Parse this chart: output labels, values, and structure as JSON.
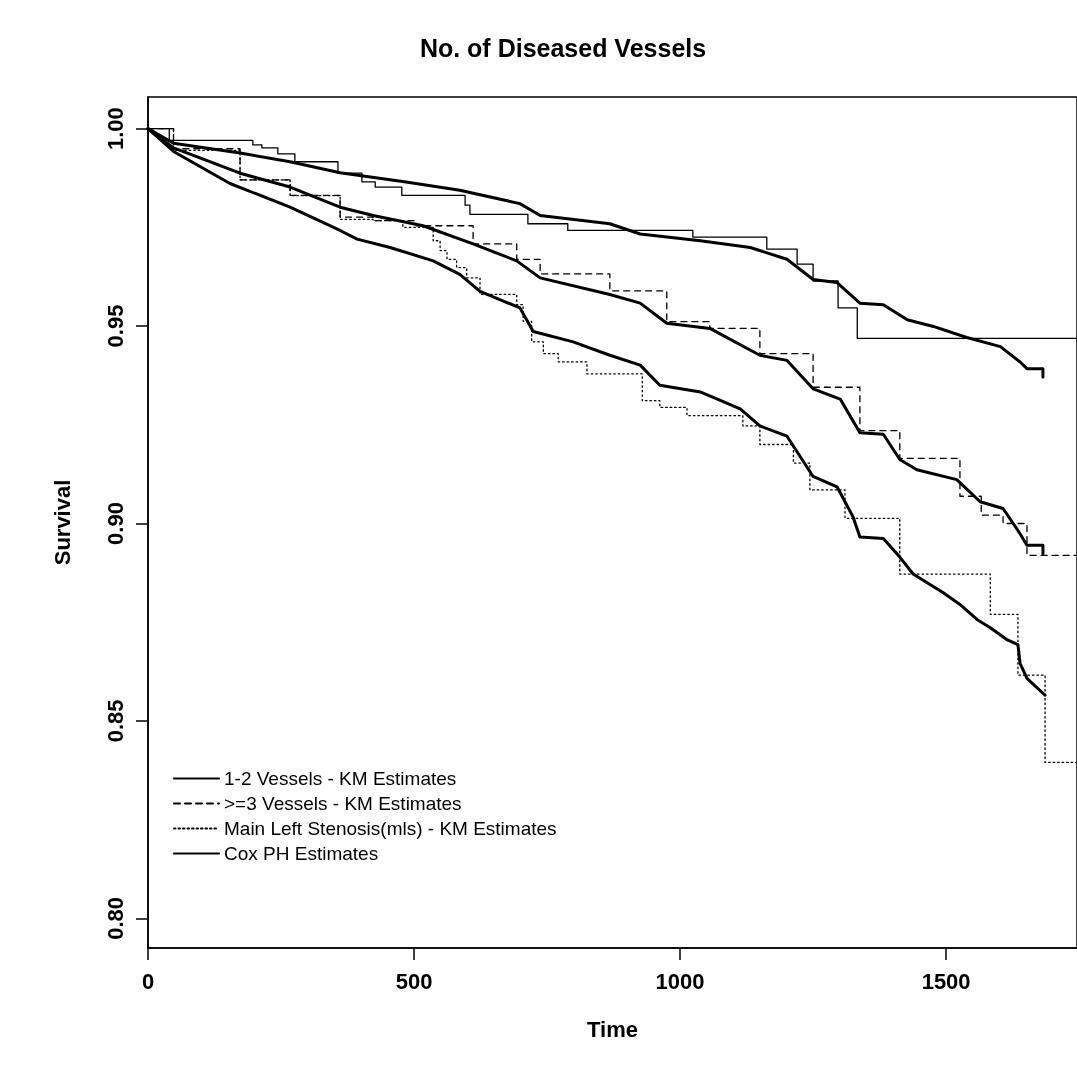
{
  "chart_data": {
    "type": "step",
    "title": "No. of Diseased Vessels",
    "xlabel": "Time",
    "ylabel": "Survival",
    "xlim": [
      0,
      1746
    ],
    "xticks": [
      0,
      500,
      1000,
      1500
    ],
    "ylim": [
      0.7925,
      1.008
    ],
    "yticks": [
      {
        "value": 0.8,
        "label": "0.80"
      },
      {
        "value": 0.85,
        "label": "0.85"
      },
      {
        "value": 0.9,
        "label": "0.90"
      },
      {
        "value": 0.95,
        "label": "0.95"
      },
      {
        "value": 1,
        "label": "1.00"
      }
    ],
    "grid": false,
    "legend": "bottom left",
    "marker": "none",
    "series": [
      {
        "name": "1-2 Vessels - KM Estimates",
        "line_style": "solid",
        "color": "#000000",
        "x": [
          0,
          40,
          197,
          214,
          244,
          276,
          357,
          402,
          427,
          477,
          596,
          605,
          714,
          789,
          1024,
          1163,
          1220,
          1250,
          1297,
          1333,
          1746
        ],
        "values": [
          1.0,
          0.997,
          0.9959,
          0.9951,
          0.9936,
          0.9916,
          0.9887,
          0.9865,
          0.9852,
          0.9831,
          0.9806,
          0.9783,
          0.9759,
          0.9742,
          0.9725,
          0.9695,
          0.9657,
          0.9614,
          0.9546,
          0.9469,
          0.9469
        ]
      },
      {
        "name": ">=3 Vessels - KM Estimates",
        "line_style": "dashed",
        "color": "#000000",
        "x": [
          0,
          48,
          173,
          267,
          361,
          423,
          504,
          611,
          693,
          737,
          868,
          975,
          1056,
          1150,
          1250,
          1338,
          1413,
          1526,
          1566,
          1607,
          1652,
          1746
        ],
        "values": [
          1.0,
          0.9949,
          0.987,
          0.9831,
          0.9776,
          0.9767,
          0.9754,
          0.9708,
          0.9669,
          0.9632,
          0.9589,
          0.9511,
          0.9494,
          0.943,
          0.9345,
          0.9235,
          0.9165,
          0.9069,
          0.9021,
          0.9,
          0.8919,
          0.8919
        ]
      },
      {
        "name": "Main Left Stenosis(mls) - KM Estimates",
        "line_style": "dotted",
        "color": "#000000",
        "x": [
          0,
          48,
          173,
          267,
          361,
          423,
          479,
          536,
          549,
          562,
          580,
          599,
          624,
          693,
          705,
          721,
          743,
          771,
          825,
          929,
          962,
          1013,
          1118,
          1150,
          1213,
          1244,
          1310,
          1413,
          1583,
          1635,
          1686,
          1746
        ],
        "values": [
          1.0,
          0.9945,
          0.987,
          0.983,
          0.977,
          0.9767,
          0.975,
          0.9716,
          0.9691,
          0.9669,
          0.9648,
          0.9622,
          0.958,
          0.9554,
          0.9512,
          0.946,
          0.943,
          0.9409,
          0.9379,
          0.9311,
          0.9294,
          0.9273,
          0.9247,
          0.92,
          0.9153,
          0.9085,
          0.9013,
          0.8872,
          0.877,
          0.8616,
          0.8395,
          0.8395
        ]
      },
      {
        "name": "Cox PH Estimates",
        "type": "line",
        "line_style": "solid",
        "color": "#000000",
        "x": [
          0,
          48,
          173,
          267,
          361,
          485,
          586,
          699,
          737,
          868,
          925,
          1038,
          1132,
          1201,
          1250,
          1295,
          1338,
          1382,
          1427,
          1476,
          1539,
          1602,
          1639,
          1652,
          1682,
          1682
        ],
        "values": [
          1.0,
          0.9963,
          0.9938,
          0.9916,
          0.9888,
          0.9865,
          0.9844,
          0.981,
          0.978,
          0.9759,
          0.9733,
          0.9716,
          0.9699,
          0.9669,
          0.9618,
          0.961,
          0.9558,
          0.9554,
          0.9516,
          0.9499,
          0.9471,
          0.9448,
          0.9409,
          0.9392,
          0.9392,
          0.9371
        ]
      },
      {
        "type": "line",
        "line_style": "solid",
        "color": "#000000",
        "x": [
          0,
          48,
          173,
          267,
          361,
          423,
          517,
          611,
          693,
          737,
          868,
          925,
          975,
          1056,
          1150,
          1201,
          1250,
          1301,
          1338,
          1382,
          1413,
          1445,
          1520,
          1564,
          1607,
          1639,
          1652,
          1682,
          1682
        ],
        "values": [
          1.0,
          0.9951,
          0.9887,
          0.9852,
          0.9801,
          0.978,
          0.9754,
          0.9708,
          0.9665,
          0.9622,
          0.958,
          0.9558,
          0.9507,
          0.9494,
          0.9426,
          0.9413,
          0.9341,
          0.9315,
          0.923,
          0.9226,
          0.9162,
          0.9136,
          0.9111,
          0.9055,
          0.9038,
          0.8974,
          0.8945,
          0.8945,
          0.8924
        ]
      },
      {
        "type": "line",
        "line_style": "solid",
        "color": "#000000",
        "x": [
          0,
          48,
          154,
          267,
          361,
          393,
          455,
          536,
          586,
          624,
          699,
          724,
          799,
          868,
          925,
          962,
          1038,
          1113,
          1150,
          1201,
          1250,
          1295,
          1325,
          1338,
          1382,
          1413,
          1438,
          1494,
          1526,
          1558,
          1583,
          1614,
          1635,
          1639,
          1652,
          1686
        ],
        "values": [
          1.0,
          0.9942,
          0.9861,
          0.9801,
          0.9742,
          0.972,
          0.9699,
          0.9665,
          0.9631,
          0.9588,
          0.9546,
          0.9486,
          0.946,
          0.9426,
          0.9401,
          0.935,
          0.9333,
          0.929,
          0.9247,
          0.9221,
          0.9119,
          0.9093,
          0.9017,
          0.8966,
          0.8962,
          0.8915,
          0.8872,
          0.8825,
          0.8795,
          0.8757,
          0.8736,
          0.8706,
          0.8693,
          0.8646,
          0.8608,
          0.8565
        ]
      }
    ]
  }
}
